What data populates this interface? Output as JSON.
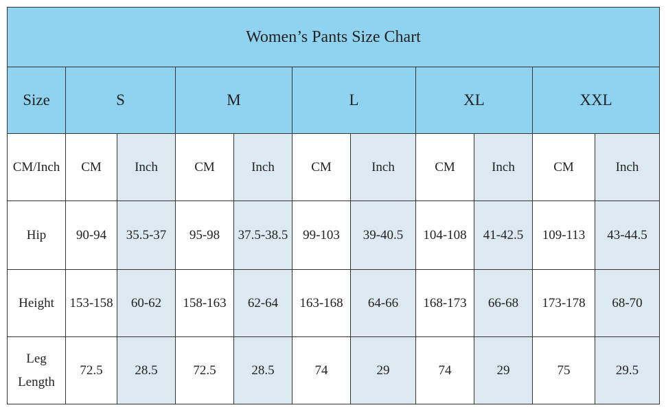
{
  "title": "Women’s Pants Size Chart",
  "header": {
    "label": "Size",
    "sizes": [
      "S",
      "M",
      "L",
      "XL",
      "XXL"
    ]
  },
  "rows": [
    {
      "label": "CM/Inch",
      "values": [
        "CM",
        "Inch",
        "CM",
        "Inch",
        "CM",
        "Inch",
        "CM",
        "Inch",
        "CM",
        "Inch"
      ]
    },
    {
      "label": "Hip",
      "values": [
        "90-94",
        "35.5-37",
        "95-98",
        "37.5-38.5",
        "99-103",
        "39-40.5",
        "104-108",
        "41-42.5",
        "109-113",
        "43-44.5"
      ]
    },
    {
      "label": "Height",
      "values": [
        "153-158",
        "60-62",
        "158-163",
        "62-64",
        "163-168",
        "64-66",
        "168-173",
        "66-68",
        "173-178",
        "68-70"
      ]
    },
    {
      "label": "Leg Length",
      "values": [
        72.5,
        28.5,
        72.5,
        28.5,
        74,
        29,
        74,
        29,
        75,
        29.5
      ]
    }
  ]
}
